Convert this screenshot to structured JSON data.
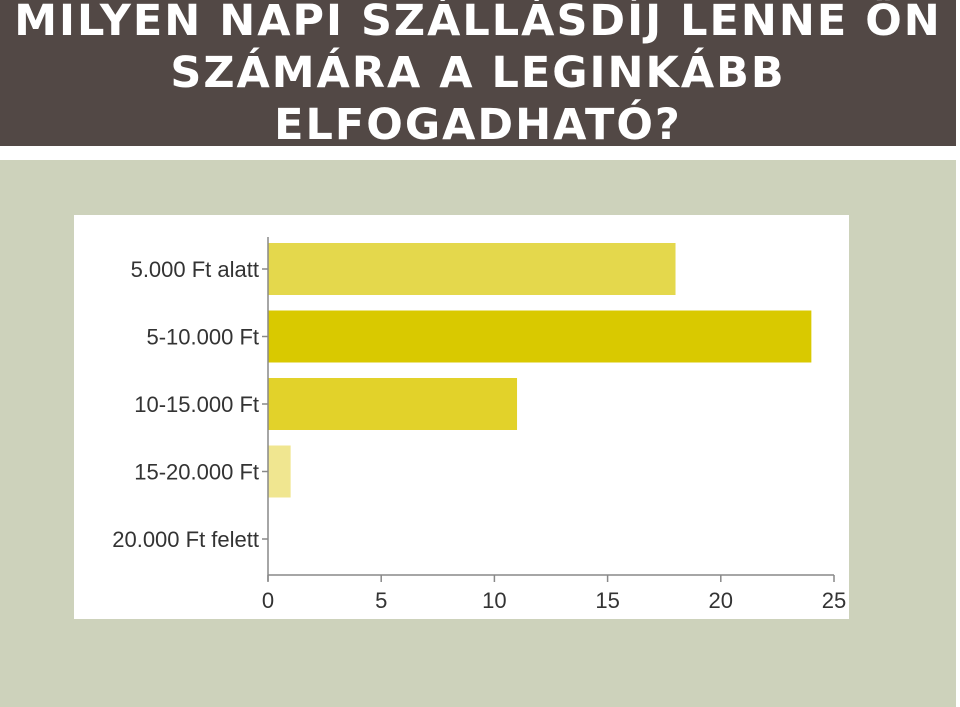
{
  "slide": {
    "title": "MILYEN NAPI SZÁLLÁSDÍJ LENNE ÖN\nSZÁMÁRA A LEGINKÁBB ELFOGADHATÓ?"
  },
  "chart_data": {
    "type": "bar",
    "orientation": "horizontal",
    "categories": [
      "5.000 Ft alatt",
      "5-10.000 Ft",
      "10-15.000 Ft",
      "15-20.000 Ft",
      "20.000 Ft felett"
    ],
    "values": [
      18,
      24,
      11,
      1,
      0
    ],
    "colors": [
      "#e4d84c",
      "#d9c900",
      "#e2d22a",
      "#f0e690",
      "#f0e690"
    ],
    "xlim": [
      0,
      25
    ],
    "xticks": [
      0,
      5,
      10,
      15,
      20,
      25
    ],
    "grid": false,
    "legend": "none"
  }
}
